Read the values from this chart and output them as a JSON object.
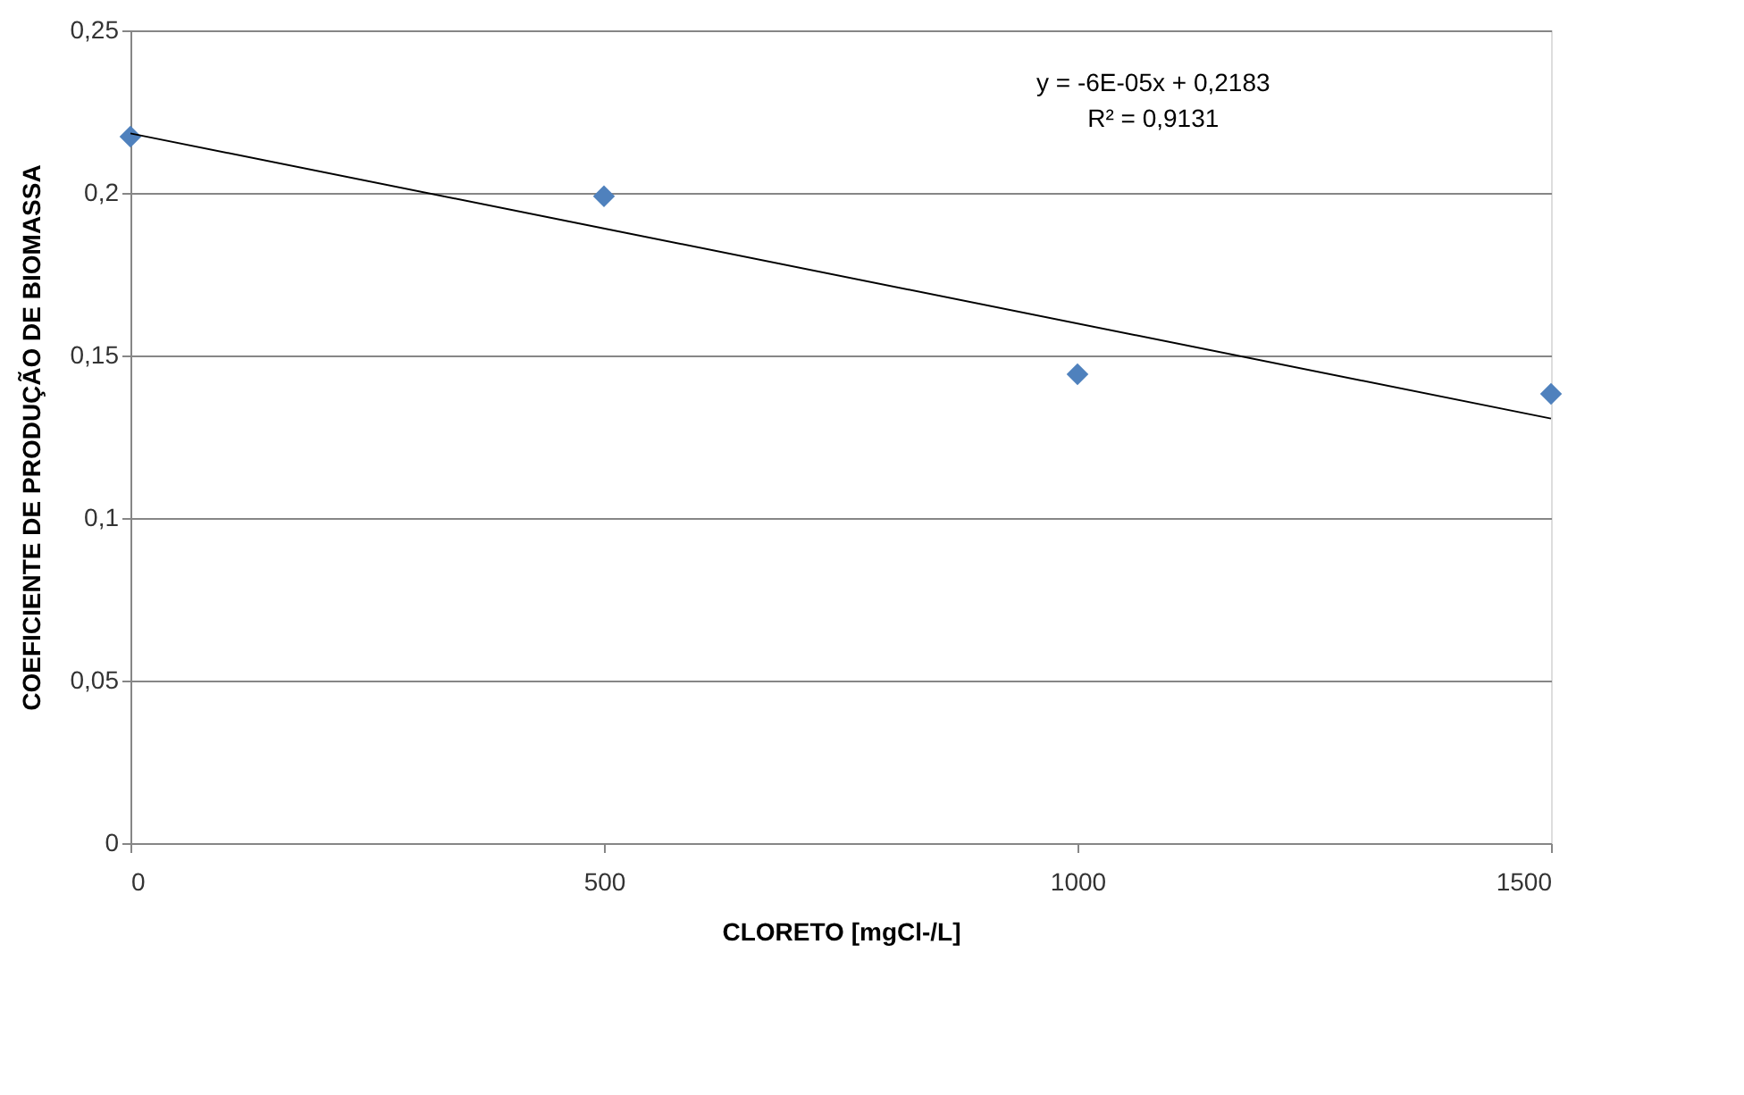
{
  "chart_data": {
    "type": "scatter",
    "xlabel": "CLORETO [mgCl-/L]",
    "ylabel": "COEFICIENTE DE PRODUÇÃO DE BIOMASSA",
    "x": [
      0,
      500,
      1000,
      1500
    ],
    "series": [
      {
        "color": "#4f81bd",
        "marker": "diamond",
        "values": [
          0.2173,
          0.199,
          0.1442,
          0.1382
        ]
      },
      {
        "type": "line",
        "color": "#000000",
        "x": [
          0,
          1500
        ],
        "values": [
          0.2183,
          0.1306
        ],
        "line_style": "solid"
      }
    ],
    "xlim": [
      0,
      1500
    ],
    "xticks": [
      0,
      500,
      1000,
      1500
    ],
    "ylim": [
      0,
      0.25
    ],
    "yticks": [
      {
        "value": 0,
        "label": "0"
      },
      {
        "value": 0.05,
        "label": "0,05"
      },
      {
        "value": 0.1,
        "label": "0,1"
      },
      {
        "value": 0.15,
        "label": "0,15"
      },
      {
        "value": 0.2,
        "label": "0,2"
      },
      {
        "value": 0.25,
        "label": "0,25"
      }
    ],
    "grid": "y",
    "annotations": [
      "y = -6E-05x + 0,2183",
      "R² = 0,9131"
    ]
  }
}
